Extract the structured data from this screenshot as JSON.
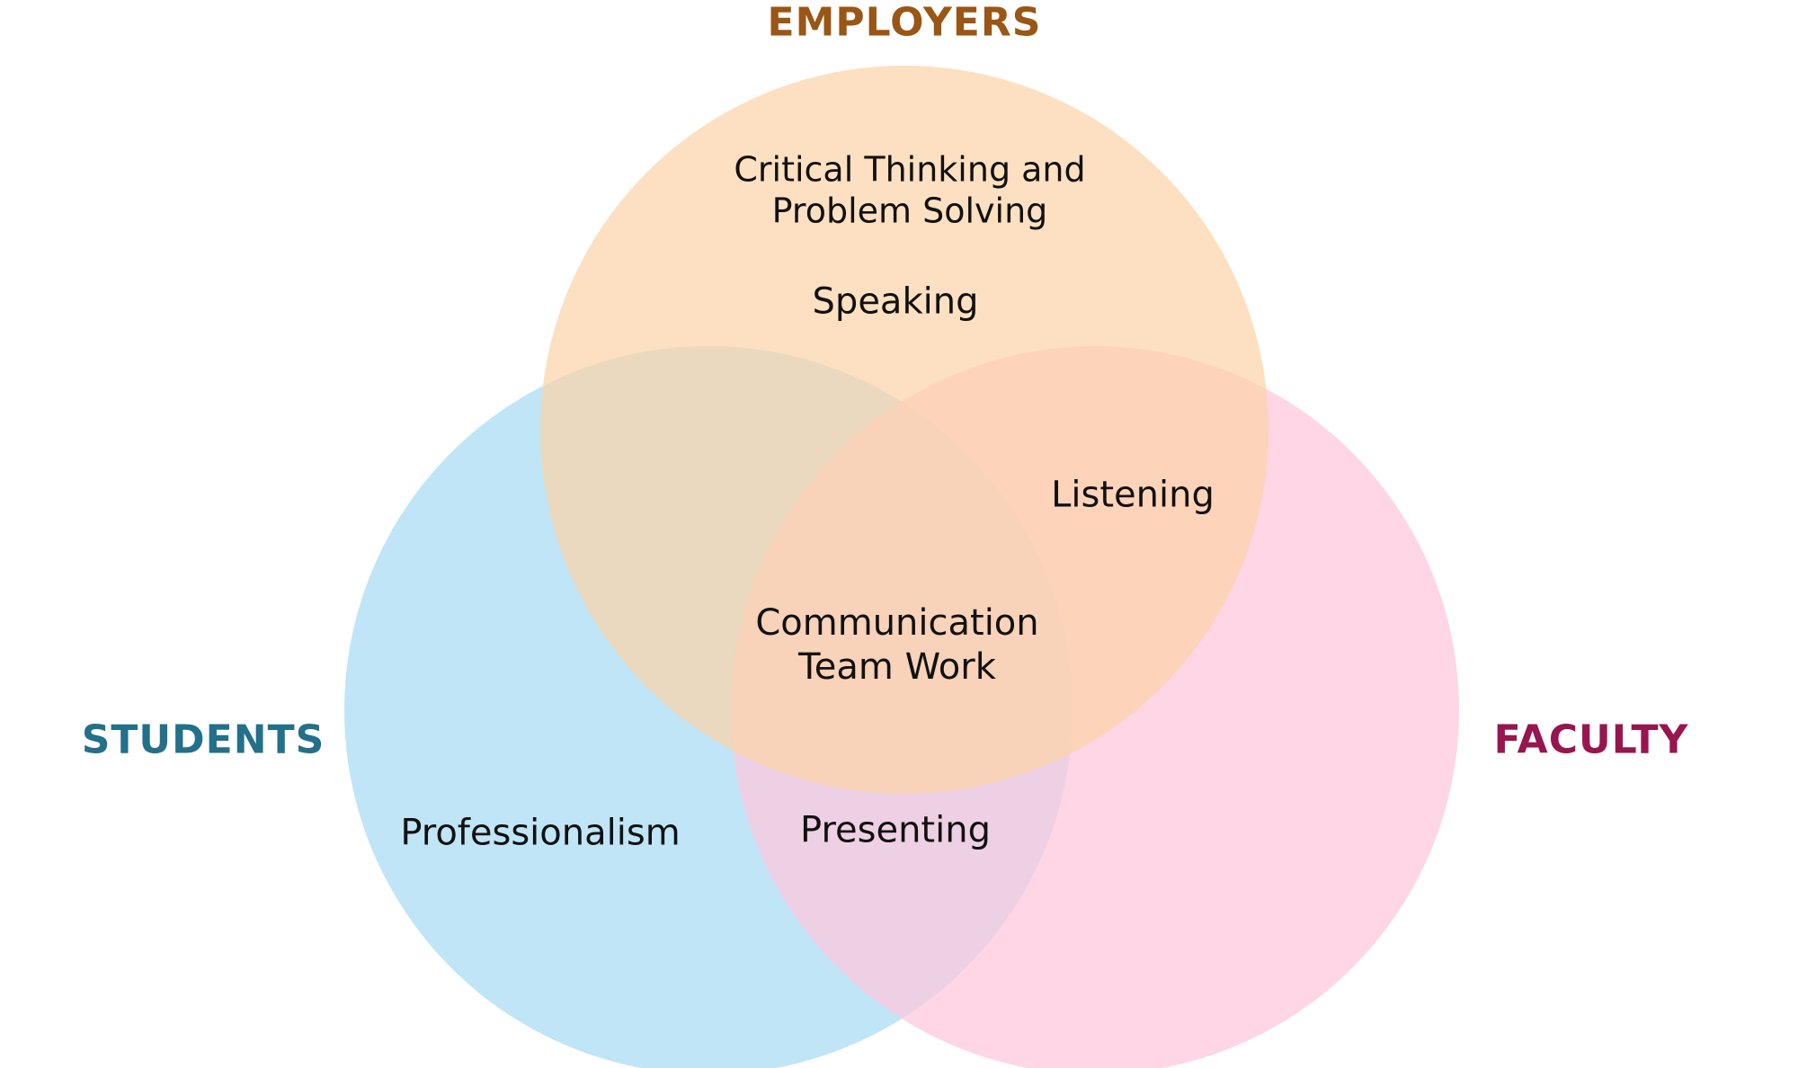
{
  "sets": {
    "employers": {
      "label": "EMPLOYERS",
      "fill": "#fcd3a6",
      "label_color": "#9a5614"
    },
    "students": {
      "label": "STUDENTS",
      "fill": "#a9dcf4",
      "label_color": "#23708a"
    },
    "faculty": {
      "label": "FACULTY",
      "fill": "#fdc8de",
      "label_color": "#98154f"
    }
  },
  "regions": {
    "employers_only": [
      "Critical Thinking and",
      "Problem Solving",
      "Speaking"
    ],
    "employers_faculty": "Listening",
    "all_three": [
      "Communication",
      "Team Work"
    ],
    "students_only": "Professionalism",
    "students_faculty": "Presenting"
  }
}
